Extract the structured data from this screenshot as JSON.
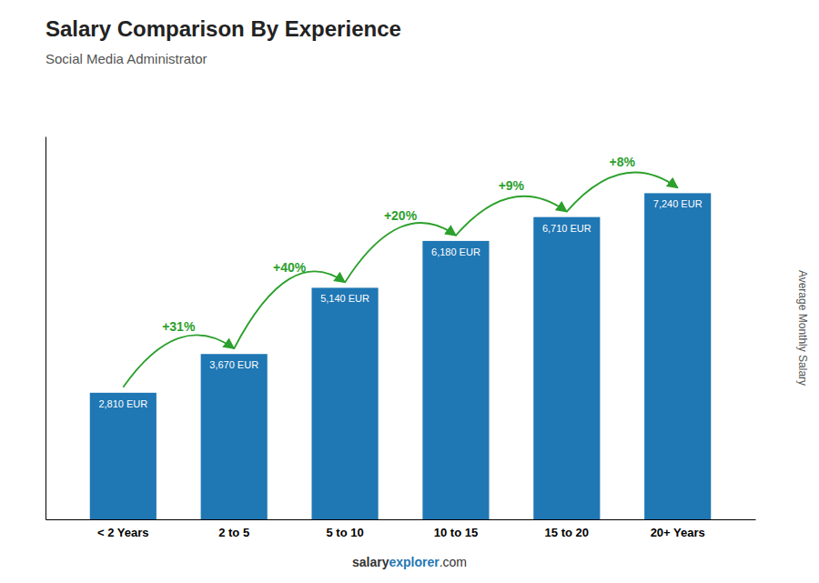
{
  "chart_data": {
    "type": "bar",
    "title": "Salary Comparison By Experience",
    "subtitle": "Social Media Administrator",
    "ylabel": "Average Monthly Salary",
    "categories": [
      "< 2 Years",
      "2 to 5",
      "5 to 10",
      "10 to 15",
      "15 to 20",
      "20+ Years"
    ],
    "values": [
      2810,
      3670,
      5140,
      6180,
      6710,
      7240
    ],
    "value_labels": [
      "2,810 EUR",
      "3,670 EUR",
      "5,140 EUR",
      "6,180 EUR",
      "6,710 EUR",
      "7,240 EUR"
    ],
    "data_labels": true,
    "annotations": [
      "+31%",
      "+40%",
      "+20%",
      "+9%",
      "+8%"
    ],
    "footer": [
      "salary",
      "explorer",
      ".com"
    ],
    "ylim": [
      0,
      8500
    ],
    "tick_labels": "x"
  }
}
